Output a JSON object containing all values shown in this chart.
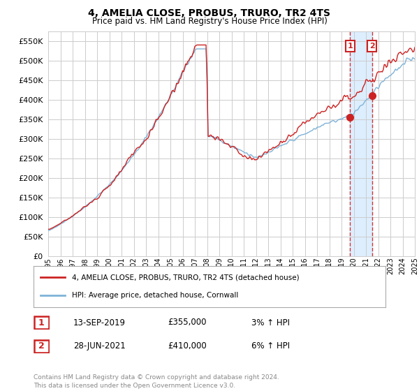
{
  "title": "4, AMELIA CLOSE, PROBUS, TRURO, TR2 4TS",
  "subtitle": "Price paid vs. HM Land Registry's House Price Index (HPI)",
  "ylim": [
    0,
    575000
  ],
  "yticks": [
    0,
    50000,
    100000,
    150000,
    200000,
    250000,
    300000,
    350000,
    400000,
    450000,
    500000,
    550000
  ],
  "background_color": "#ffffff",
  "grid_color": "#cccccc",
  "hpi_color": "#7eb3d8",
  "price_color": "#cc2222",
  "vline_color": "#cc2222",
  "shade_color": "#ddeeff",
  "sale1_year": 2019.71,
  "sale1_price": 355000,
  "sale2_year": 2021.49,
  "sale2_price": 410000,
  "sale1_date_str": "13-SEP-2019",
  "sale2_date_str": "28-JUN-2021",
  "sale1_hpi_pct": "3%",
  "sale2_hpi_pct": "6%",
  "legend_price_label": "4, AMELIA CLOSE, PROBUS, TRURO, TR2 4TS (detached house)",
  "legend_hpi_label": "HPI: Average price, detached house, Cornwall",
  "footer": "Contains HM Land Registry data © Crown copyright and database right 2024.\nThis data is licensed under the Open Government Licence v3.0.",
  "xstart": 1995,
  "xend": 2025
}
